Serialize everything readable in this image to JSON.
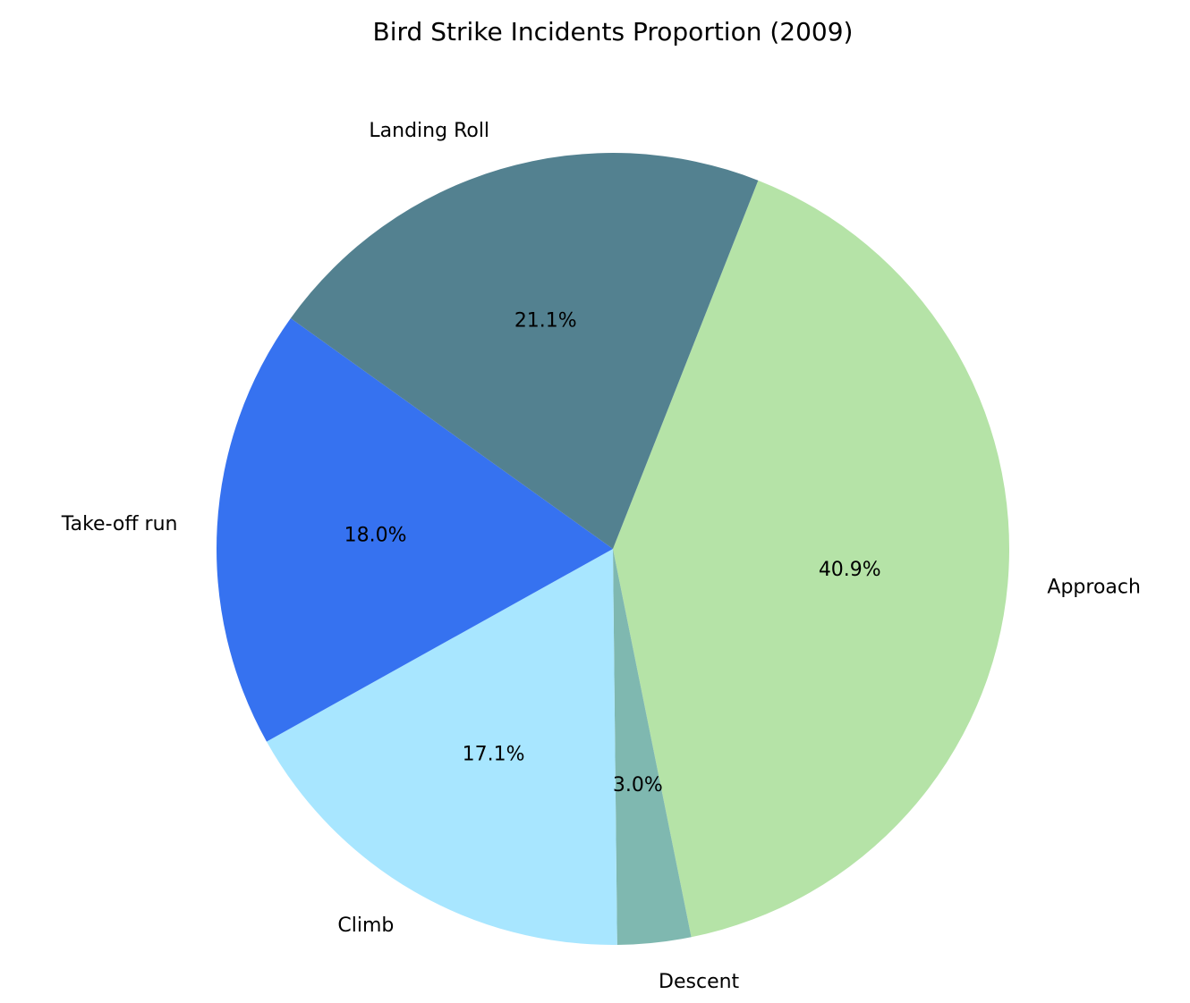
{
  "chart_data": {
    "type": "pie",
    "title": "Bird Strike Incidents Proportion (2009)",
    "slices": [
      {
        "label": "Approach",
        "value": 40.9,
        "pct_label": "40.9%",
        "color": "#b5e3a7"
      },
      {
        "label": "Descent",
        "value": 3.0,
        "pct_label": "3.0%",
        "color": "#7fb8b0"
      },
      {
        "label": "Climb",
        "value": 17.1,
        "pct_label": "17.1%",
        "color": "#a8e6ff"
      },
      {
        "label": "Take-off run",
        "value": 18.0,
        "pct_label": "18.0%",
        "color": "#3672f0"
      },
      {
        "label": "Landing Roll",
        "value": 21.1,
        "pct_label": "21.1%",
        "color": "#538190"
      }
    ],
    "legend": "none"
  }
}
